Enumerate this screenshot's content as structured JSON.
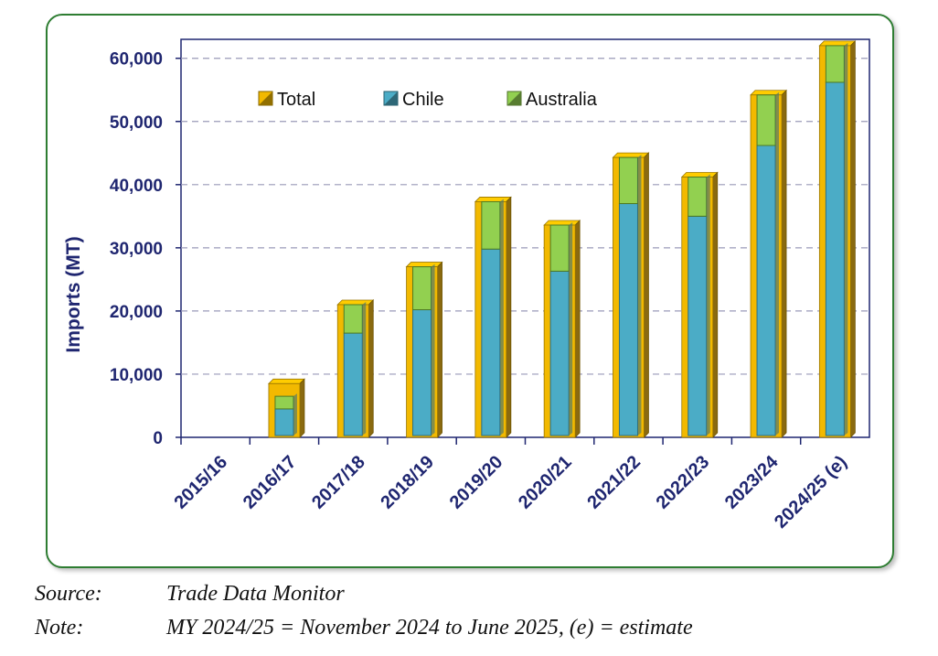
{
  "chart_data": {
    "type": "bar",
    "ylabel": "Imports (MT)",
    "xlabel": "",
    "ylim": [
      0,
      63000
    ],
    "yticks": [
      0,
      10000,
      20000,
      30000,
      40000,
      50000,
      60000
    ],
    "ytick_labels": [
      "0",
      "10,000",
      "20,000",
      "30,000",
      "40,000",
      "50,000",
      "60,000"
    ],
    "grid": true,
    "legend_position": "top-left",
    "categories": [
      "2015/16",
      "2016/17",
      "2017/18",
      "2018/19",
      "2019/20",
      "2020/21",
      "2021/22",
      "2022/23",
      "2023/24",
      "2024/25 (e)"
    ],
    "series": [
      {
        "name": "Total",
        "color": "#f2b900",
        "values": [
          0,
          8500,
          21000,
          27000,
          37300,
          33600,
          44300,
          41200,
          54200,
          62000
        ]
      },
      {
        "name": "Chile",
        "color": "#4bacc6",
        "values": [
          0,
          4500,
          16500,
          20200,
          29800,
          26300,
          37000,
          35000,
          46200,
          56200
        ]
      },
      {
        "name": "Australia",
        "color": "#92d050",
        "values": [
          0,
          2000,
          4500,
          6800,
          7500,
          7300,
          7300,
          6200,
          8000,
          5800
        ]
      }
    ],
    "colors": {
      "axis": "#1f2670",
      "grid": "#9a9ab8",
      "frame": "#2e7d32"
    }
  },
  "footnotes": {
    "source_label": "Source:",
    "source_text": "Trade Data Monitor",
    "note_label": "Note:",
    "note_text": "MY 2024/25 = November 2024 to June 2025, (e) = estimate"
  }
}
